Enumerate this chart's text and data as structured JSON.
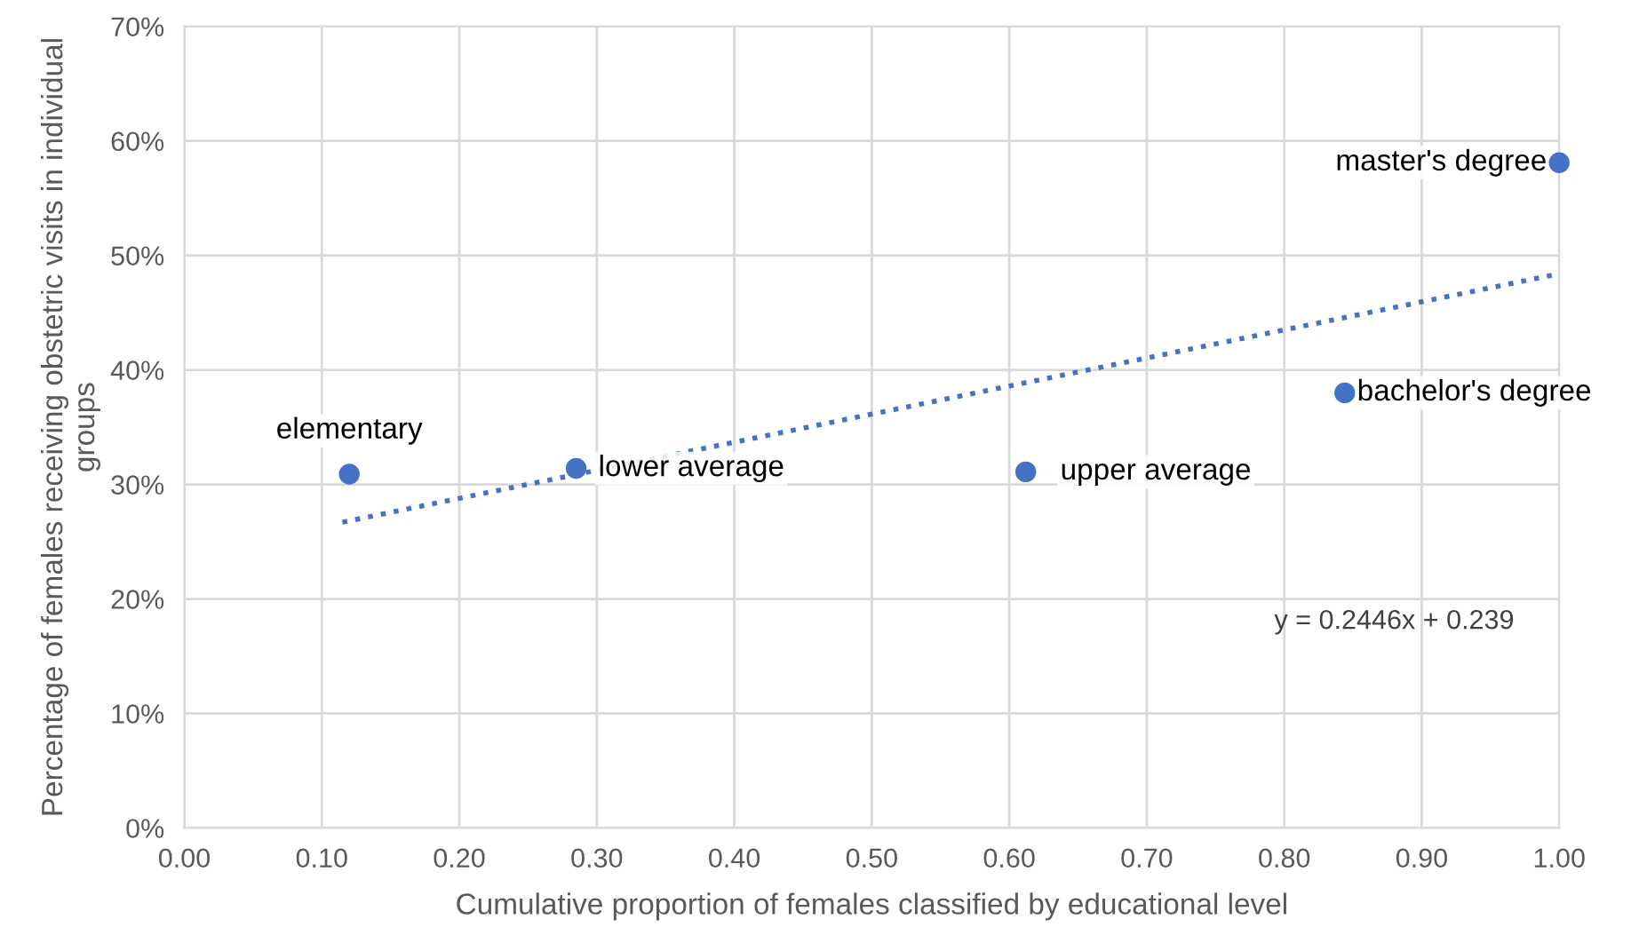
{
  "chart_data": {
    "type": "scatter",
    "xlabel": "Cumulative proportion of females classified by educational level",
    "ylabel": "Percentage of females receiving obstetric visits in individual groups",
    "xlim": [
      0,
      1
    ],
    "ylim": [
      0,
      0.7
    ],
    "xticks": [
      {
        "value": 0,
        "label": "0.00"
      },
      {
        "value": 0.1,
        "label": "0.10"
      },
      {
        "value": 0.2,
        "label": "0.20"
      },
      {
        "value": 0.3,
        "label": "0.30"
      },
      {
        "value": 0.4,
        "label": "0.40"
      },
      {
        "value": 0.5,
        "label": "0.50"
      },
      {
        "value": 0.6,
        "label": "0.60"
      },
      {
        "value": 0.7,
        "label": "0.70"
      },
      {
        "value": 0.8,
        "label": "0.80"
      },
      {
        "value": 0.9,
        "label": "0.90"
      },
      {
        "value": 1,
        "label": "1.00"
      }
    ],
    "yticks": [
      {
        "value": 0,
        "label": "0%"
      },
      {
        "value": 0.1,
        "label": "10%"
      },
      {
        "value": 0.2,
        "label": "20%"
      },
      {
        "value": 0.3,
        "label": "30%"
      },
      {
        "value": 0.4,
        "label": "40%"
      },
      {
        "value": 0.5,
        "label": "50%"
      },
      {
        "value": 0.6,
        "label": "60%"
      },
      {
        "value": 0.7,
        "label": "70%"
      }
    ],
    "grid": true,
    "marker": "circle",
    "series": [
      {
        "color": "#4472c4",
        "x": [
          0.12,
          0.285,
          0.612,
          0.844,
          1.0
        ],
        "values": [
          0.309,
          0.314,
          0.311,
          0.38,
          0.581
        ]
      },
      {
        "type": "line",
        "color": "#4472c4",
        "line_style": "dotted",
        "marker": "none",
        "x": [
          0.115,
          1.0
        ],
        "values": [
          0.267,
          0.484
        ]
      }
    ],
    "annotations": [
      {
        "text": "elementary",
        "x": 0.12,
        "y": 0.309
      },
      {
        "text": "lower average",
        "x": 0.285,
        "y": 0.314
      },
      {
        "text": "upper average",
        "x": 0.612,
        "y": 0.311
      },
      {
        "text": "bachelor's degree",
        "x": 0.844,
        "y": 0.38
      },
      {
        "text": "master's degree",
        "x": 1.0,
        "y": 0.581
      },
      "y = 0.2446x + 0.239"
    ]
  }
}
